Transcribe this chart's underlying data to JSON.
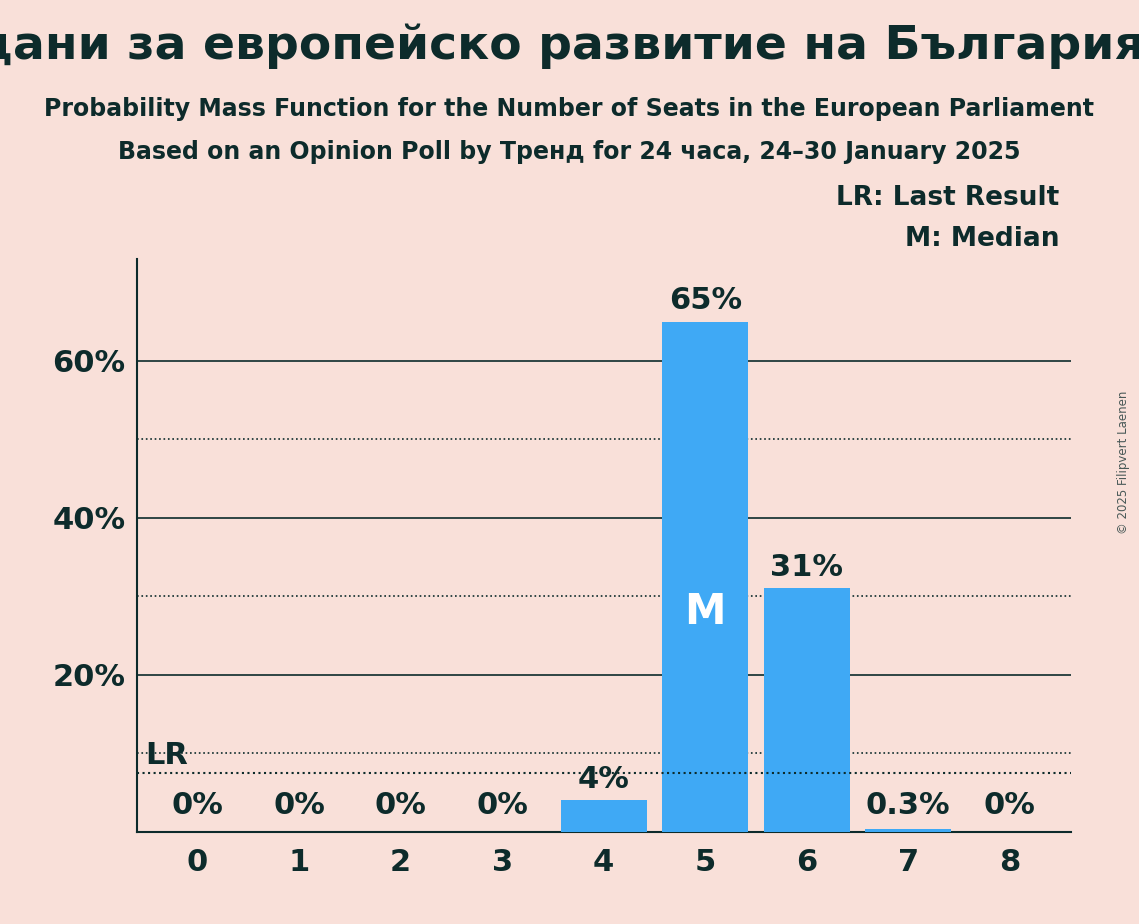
{
  "title_cyrillic": "Граждани за европейско развитие на България (EPP)",
  "subtitle1": "Probability Mass Function for the Number of Seats in the European Parliament",
  "subtitle2": "Based on an Opinion Poll by Тренд for 24 часа, 24–30 January 2025",
  "copyright": "© 2025 Filipvert Laenen",
  "categories": [
    0,
    1,
    2,
    3,
    4,
    5,
    6,
    7,
    8
  ],
  "values": [
    0.0,
    0.0,
    0.0,
    0.0,
    4.0,
    65.0,
    31.0,
    0.3,
    0.0
  ],
  "bar_color": "#3FA9F5",
  "background_color": "#F9E0D9",
  "text_color": "#0D2B2B",
  "label_above": [
    "0%",
    "0%",
    "0%",
    "0%",
    "4%",
    "65%",
    "31%",
    "0.3%",
    "0%"
  ],
  "median_seat": 5,
  "median_label": "M",
  "lr_value": 7.5,
  "yticks": [
    20,
    40,
    60
  ],
  "ylim": [
    0,
    73
  ],
  "dotted_gridlines": [
    10,
    30,
    50
  ],
  "solid_gridlines": [
    20,
    40,
    60
  ],
  "legend_lr": "LR: Last Result",
  "legend_m": "M: Median",
  "title_fontsize": 34,
  "subtitle_fontsize": 17,
  "bar_label_fontsize": 22,
  "axis_fontsize": 22,
  "legend_fontsize": 19
}
